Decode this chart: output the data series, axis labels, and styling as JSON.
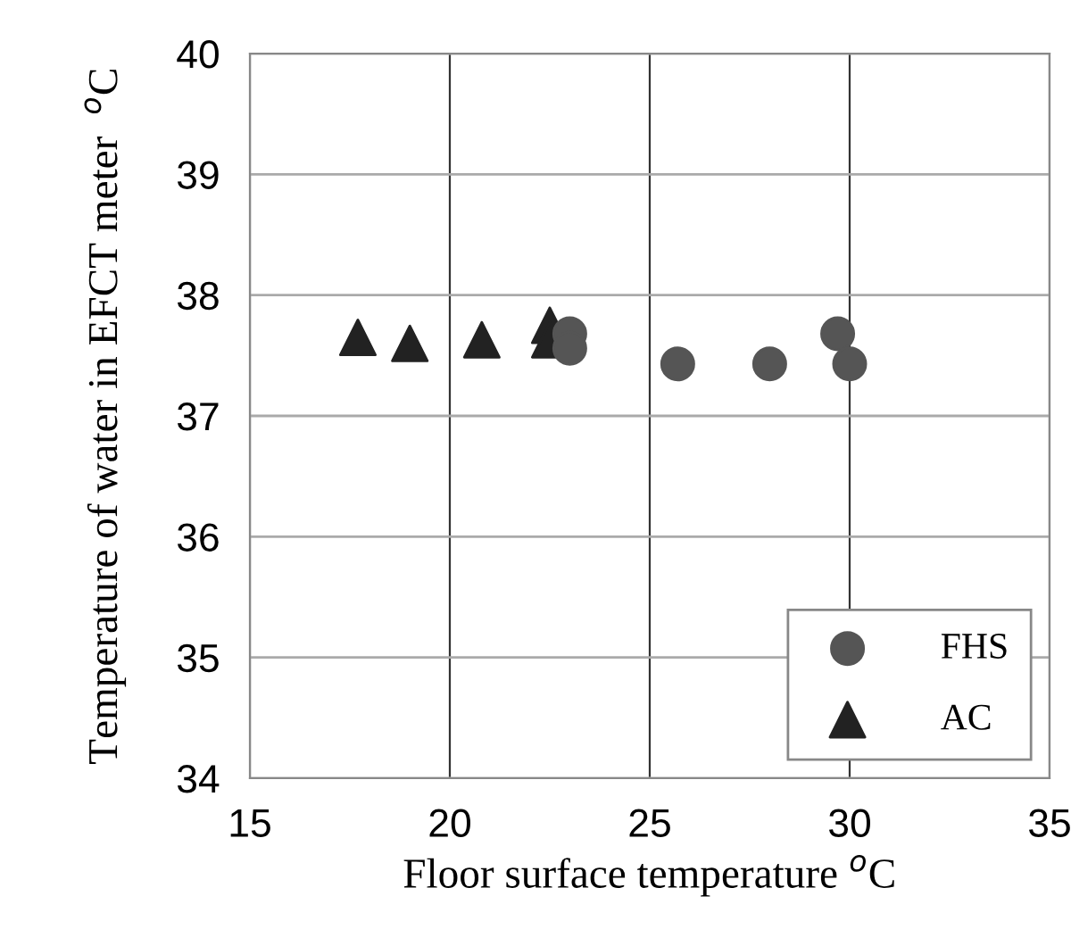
{
  "chart_data": {
    "type": "scatter",
    "xlabel": "Floor surface temperature $^{o}$C",
    "ylabel": "Temperature of water in EFCT meter  $^{o}$C",
    "series": [
      {
        "name": "FHS",
        "color": "#555555",
        "marker": "circle",
        "x": [
          23.0,
          23.0,
          25.7,
          28.0,
          29.7,
          30.0
        ],
        "values": [
          37.68,
          37.56,
          37.43,
          37.43,
          37.68,
          37.43
        ]
      },
      {
        "name": "AC",
        "color": "#222222",
        "marker": "triangle",
        "x": [
          17.7,
          19.0,
          20.8,
          22.5,
          22.5
        ],
        "values": [
          37.65,
          37.6,
          37.63,
          37.75,
          37.63
        ]
      }
    ],
    "xlim": [
      15,
      35
    ],
    "xticks": [
      15,
      20,
      25,
      30,
      35
    ],
    "ylim": [
      34,
      40
    ],
    "yticks": [
      34,
      35,
      36,
      37,
      38,
      39,
      40
    ],
    "grid": true,
    "legend": "bottom right"
  }
}
